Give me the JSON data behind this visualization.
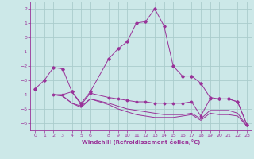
{
  "title": "",
  "xlabel": "Windchill (Refroidissement éolien,°C)",
  "ylabel": "",
  "bg_color": "#cce8e8",
  "grid_color": "#aacccc",
  "line_color": "#993399",
  "xlim": [
    -0.5,
    23.5
  ],
  "ylim": [
    -6.5,
    2.5
  ],
  "xticks": [
    0,
    1,
    2,
    3,
    4,
    5,
    6,
    8,
    9,
    10,
    11,
    12,
    13,
    14,
    15,
    16,
    17,
    18,
    19,
    20,
    21,
    22,
    23
  ],
  "yticks": [
    -6,
    -5,
    -4,
    -3,
    -2,
    -1,
    0,
    1,
    2
  ],
  "line1_x": [
    0,
    1,
    2,
    3,
    4,
    5,
    6,
    8,
    9,
    10,
    11,
    12,
    13,
    14,
    15,
    16,
    17,
    18,
    19,
    20,
    21,
    22,
    23
  ],
  "line1_y": [
    -3.6,
    -3.0,
    -2.1,
    -2.2,
    -3.8,
    -4.6,
    -3.8,
    -1.5,
    -0.8,
    -0.3,
    1.0,
    1.1,
    2.0,
    0.8,
    -2.0,
    -2.7,
    -2.7,
    -3.2,
    -4.2,
    -4.3,
    -4.3,
    -4.5,
    -6.1
  ],
  "line2_x": [
    2,
    3,
    4,
    5,
    6,
    8,
    9,
    10,
    11,
    12,
    13,
    14,
    15,
    16,
    17,
    18,
    19,
    20,
    21,
    22,
    23
  ],
  "line2_y": [
    -4.0,
    -4.0,
    -3.8,
    -4.7,
    -3.9,
    -4.2,
    -4.3,
    -4.4,
    -4.5,
    -4.5,
    -4.6,
    -4.6,
    -4.6,
    -4.6,
    -4.5,
    -5.5,
    -4.3,
    -4.3,
    -4.3,
    -4.5,
    -6.1
  ],
  "line3_x": [
    2,
    3,
    4,
    5,
    6,
    8,
    9,
    10,
    11,
    12,
    13,
    14,
    15,
    16,
    17,
    18,
    19,
    20,
    21,
    22,
    23
  ],
  "line3_y": [
    -4.0,
    -4.1,
    -4.6,
    -4.8,
    -4.3,
    -4.6,
    -4.8,
    -5.0,
    -5.1,
    -5.2,
    -5.3,
    -5.4,
    -5.4,
    -5.4,
    -5.3,
    -5.7,
    -5.1,
    -5.1,
    -5.1,
    -5.3,
    -6.2
  ],
  "line4_x": [
    2,
    3,
    4,
    5,
    6,
    8,
    9,
    10,
    11,
    12,
    13,
    14,
    15,
    16,
    17,
    18,
    19,
    20,
    21,
    22,
    23
  ],
  "line4_y": [
    -4.0,
    -4.1,
    -4.6,
    -4.9,
    -4.3,
    -4.7,
    -5.0,
    -5.2,
    -5.4,
    -5.5,
    -5.6,
    -5.6,
    -5.6,
    -5.5,
    -5.4,
    -5.8,
    -5.3,
    -5.4,
    -5.4,
    -5.5,
    -6.2
  ]
}
